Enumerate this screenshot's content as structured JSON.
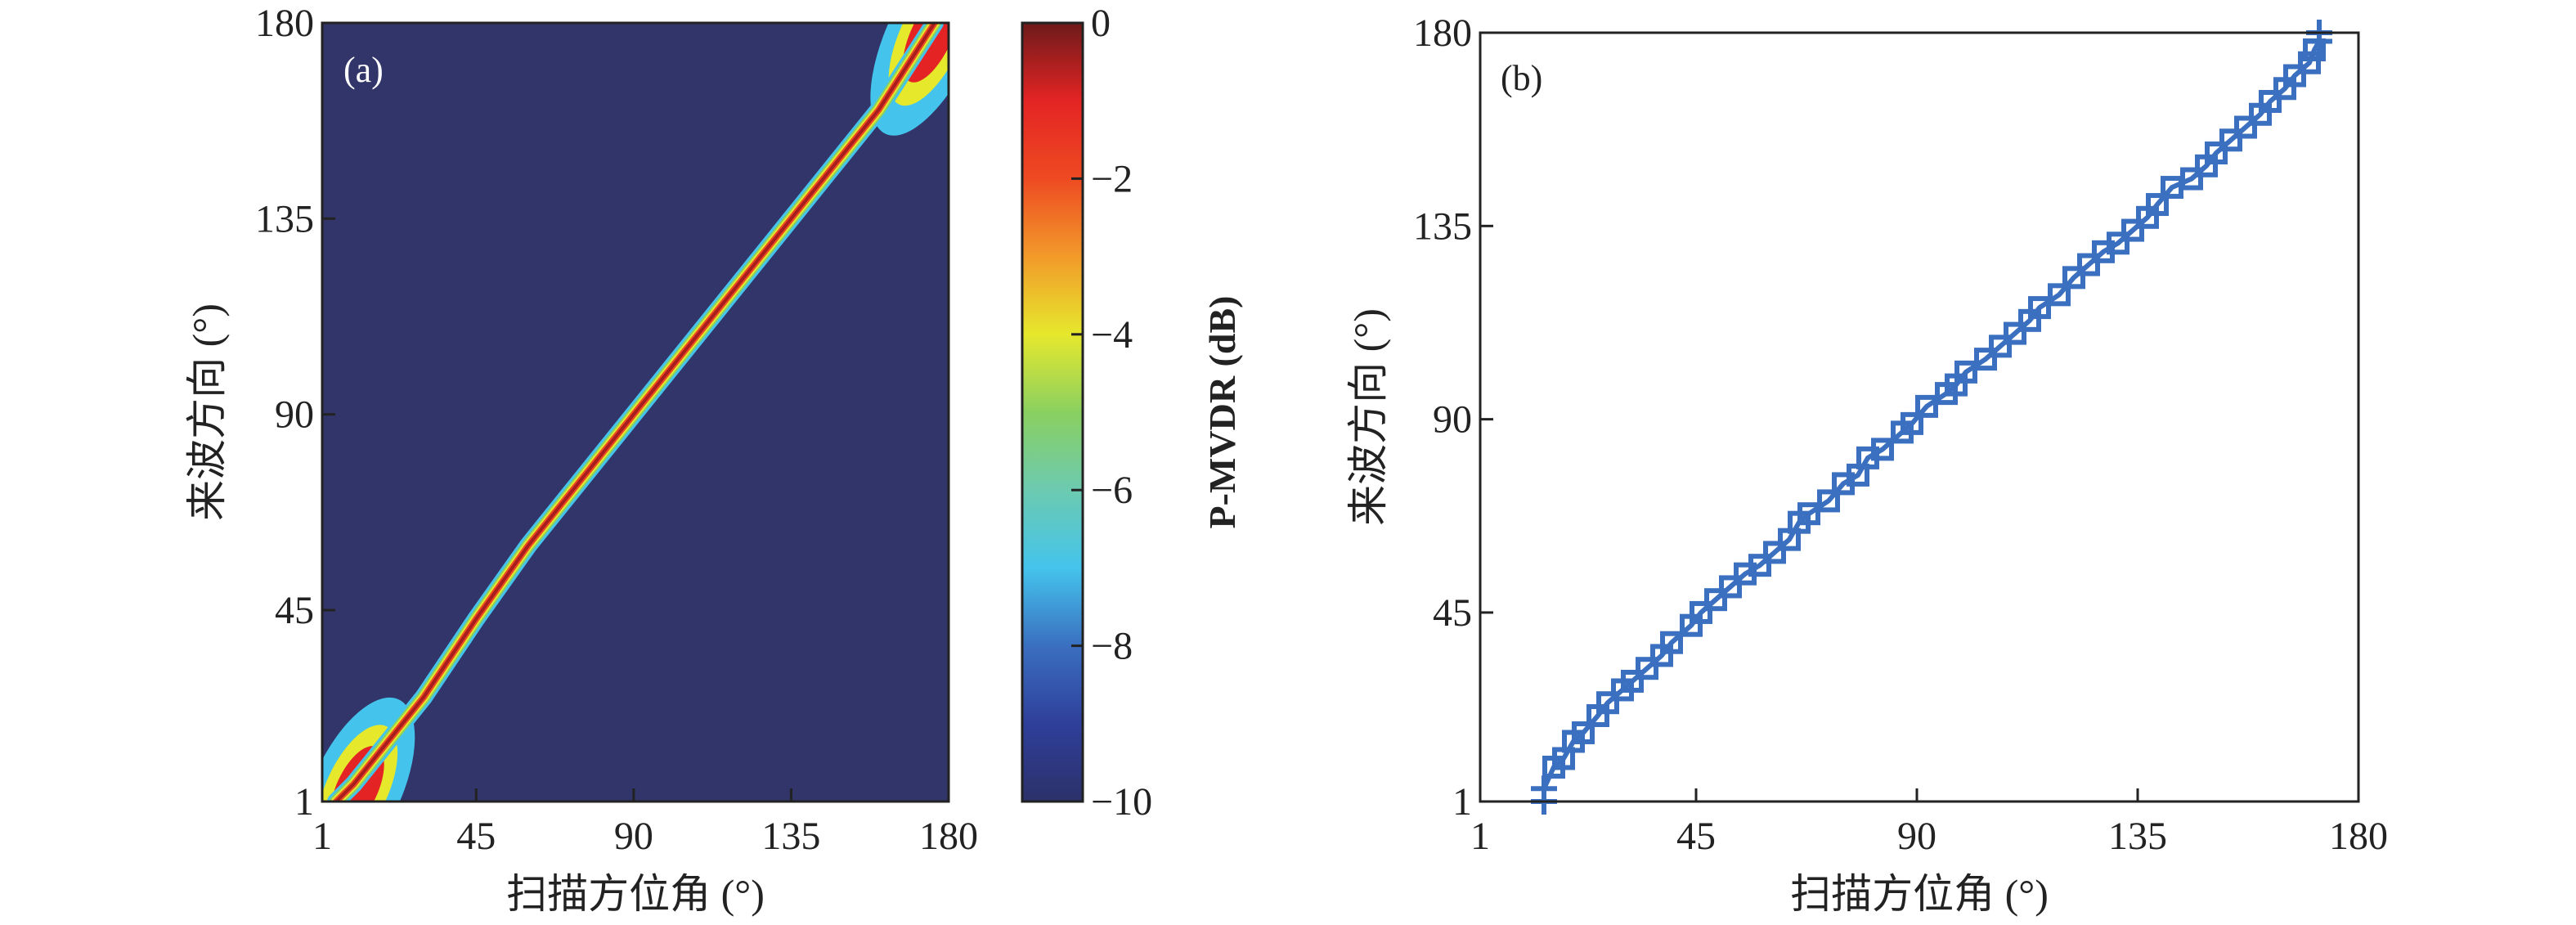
{
  "chart_data": [
    {
      "type": "heatmap",
      "panel_label": "(a)",
      "xlabel": "扫描方位角 (°)",
      "ylabel": "来波方向 (°)",
      "xlim": [
        1,
        180
      ],
      "ylim": [
        1,
        180
      ],
      "xticks": [
        "1",
        "45",
        "90",
        "135",
        "180"
      ],
      "yticks": [
        "1",
        "45",
        "90",
        "135",
        "180"
      ],
      "colorbar": {
        "label": "P-MVDR (dB)",
        "range": [
          -10,
          0
        ],
        "ticks": [
          "0",
          "−2",
          "−4",
          "−6",
          "−8",
          "−10"
        ],
        "colormap": "jet",
        "colors": [
          "#2c3169",
          "#2f3f9a",
          "#3a6fc0",
          "#44c4ec",
          "#6ccab0",
          "#8ad060",
          "#e6e82c",
          "#f29a2a",
          "#ee4a22",
          "#e42424",
          "#6e1a1a"
        ]
      },
      "background_color": "#31356a",
      "ridge": {
        "description_values_x": [
          5,
          10,
          15,
          20,
          30,
          45,
          60,
          90,
          120,
          135,
          150,
          160,
          168,
          172,
          176
        ],
        "description_values_y": [
          1,
          5,
          10,
          15,
          25,
          43,
          60,
          90,
          120,
          135,
          150,
          160,
          170,
          175,
          180
        ]
      }
    },
    {
      "type": "line",
      "panel_label": "(b)",
      "xlabel": "扫描方位角 (°)",
      "ylabel": "来波方向 (°)",
      "xlim": [
        1,
        180
      ],
      "ylim": [
        1,
        180
      ],
      "xticks": [
        "1",
        "45",
        "90",
        "135",
        "180"
      ],
      "yticks": [
        "1",
        "45",
        "90",
        "135",
        "180"
      ],
      "marker": "plus + square",
      "color": "#3b6fbf",
      "series": [
        {
          "x": [
            14,
            14,
            16,
            18,
            20,
            22,
            25,
            27,
            30,
            32,
            35,
            38,
            40,
            44,
            46,
            49,
            52,
            55,
            58,
            61,
            64,
            66,
            68,
            72,
            75,
            78,
            80,
            83,
            87,
            89,
            92,
            96,
            98,
            100,
            104,
            107,
            110,
            113,
            115,
            119,
            122,
            125,
            128,
            131,
            134,
            137,
            139,
            142,
            146,
            149,
            151,
            154,
            157,
            160,
            162,
            165,
            167,
            170,
            171,
            172,
            172
          ],
          "y": [
            1,
            4,
            9,
            11,
            15,
            17,
            21,
            24,
            27,
            29,
            32,
            35,
            38,
            42,
            45,
            48,
            51,
            54,
            56,
            59,
            62,
            66,
            68,
            71,
            75,
            77,
            81,
            83,
            87,
            89,
            93,
            96,
            98,
            101,
            104,
            107,
            110,
            113,
            116,
            119,
            123,
            126,
            129,
            131,
            134,
            137,
            140,
            144,
            146,
            149,
            152,
            155,
            158,
            161,
            164,
            167,
            170,
            173,
            176,
            178,
            180
          ]
        }
      ]
    }
  ]
}
